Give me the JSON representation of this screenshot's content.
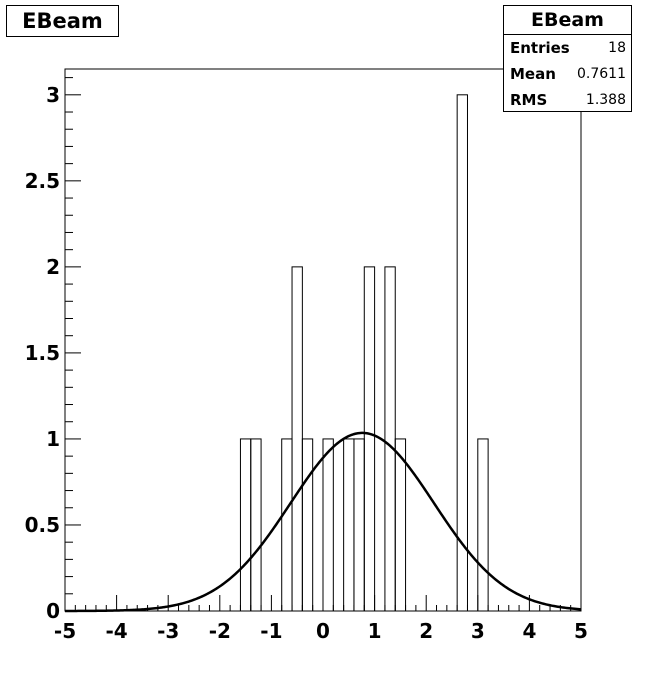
{
  "chart_data": {
    "type": "bar",
    "title": "EBeam",
    "xlim": [
      -5,
      5
    ],
    "ylim": [
      0,
      3.15
    ],
    "bin_width": 0.2,
    "bins": [
      {
        "x": -1.6,
        "value": 1
      },
      {
        "x": -1.4,
        "value": 1
      },
      {
        "x": -0.8,
        "value": 1
      },
      {
        "x": -0.6,
        "value": 2
      },
      {
        "x": -0.4,
        "value": 1
      },
      {
        "x": 0.0,
        "value": 1
      },
      {
        "x": 0.4,
        "value": 1
      },
      {
        "x": 0.6,
        "value": 1
      },
      {
        "x": 0.8,
        "value": 2
      },
      {
        "x": 1.2,
        "value": 2
      },
      {
        "x": 1.4,
        "value": 1
      },
      {
        "x": 2.6,
        "value": 3
      },
      {
        "x": 3.0,
        "value": 1
      }
    ],
    "fit": {
      "type": "gaus",
      "amplitude": 1.035,
      "mean": 0.7611,
      "sigma": 1.388
    },
    "x_ticks": [
      -5,
      -4,
      -3,
      -2,
      -1,
      0,
      1,
      2,
      3,
      4,
      5
    ],
    "y_ticks": [
      0,
      0.5,
      1,
      1.5,
      2,
      2.5,
      3
    ],
    "x_tick_labels": [
      "-5",
      "-4",
      "-3",
      "-2",
      "-1",
      "0",
      "1",
      "2",
      "3",
      "4",
      "5"
    ],
    "y_tick_labels": [
      "0",
      "0.5",
      "1",
      "1.5",
      "2",
      "2.5",
      "3"
    ],
    "legend": "top-right"
  },
  "stats": {
    "title": "EBeam",
    "rows": [
      {
        "label": "Entries",
        "value": "18"
      },
      {
        "label": "Mean",
        "value": "0.7611"
      },
      {
        "label": "RMS",
        "value": "1.388"
      }
    ]
  }
}
